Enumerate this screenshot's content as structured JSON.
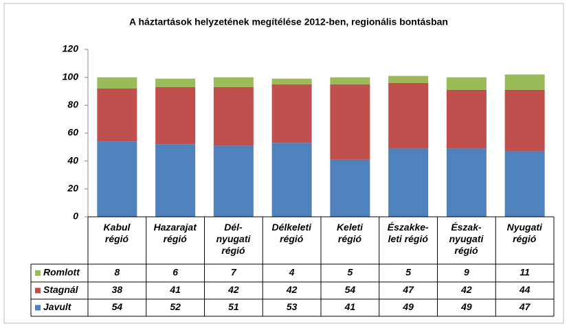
{
  "chart_data": {
    "type": "bar",
    "stacked": true,
    "title": "A háztartások  helyzetének megítélése 2012-ben, regionális bontásban",
    "categories": [
      "Kabul\nrégió",
      "Hazarajat\nrégió",
      "Dél-\nnyugati\nrégió",
      "Délkeleti\nrégió",
      "Keleti\nrégió",
      "Északke-\nleti régió",
      "Észak-\nnyugati\nrégió",
      "Nyugati\nrégió"
    ],
    "series": [
      {
        "name": "Javult",
        "color": "#4f81bd",
        "values": [
          54,
          52,
          51,
          53,
          41,
          49,
          49,
          47
        ]
      },
      {
        "name": "Stagnál",
        "color": "#c0504d",
        "values": [
          38,
          41,
          42,
          42,
          54,
          47,
          42,
          44
        ]
      },
      {
        "name": "Romlott",
        "color": "#9bbb59",
        "values": [
          8,
          6,
          7,
          4,
          5,
          5,
          9,
          11
        ]
      }
    ],
    "ylim": [
      0,
      120
    ],
    "yticks": [
      0,
      20,
      40,
      60,
      80,
      100,
      120
    ],
    "grid": false
  }
}
